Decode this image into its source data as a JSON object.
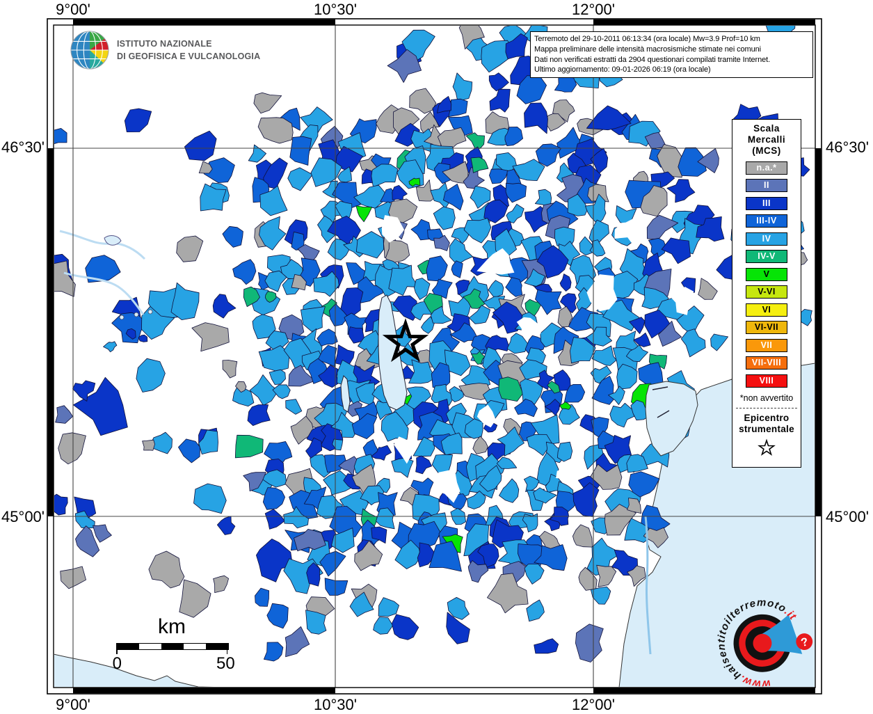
{
  "axis": {
    "top": [
      "9°00'",
      "10°30'",
      "12°00'"
    ],
    "bottom": [
      "9°00'",
      "10°30'",
      "12°00'"
    ],
    "left": [
      "46°30'",
      "45°00'"
    ],
    "right": [
      "46°30'",
      "45°00'"
    ]
  },
  "info_box": {
    "lines": [
      "Terremoto del 29-10-2011 06:13:34 (ora locale) Mw=3.9 Prof=10 km",
      "Mappa preliminare delle intensità macrosismiche stimate nei comuni",
      "Dati non verificati estratti da 2904 questionari compilati tramite Internet.",
      "Ultimo aggiornamento: 09-01-2026 06:19 (ora locale)"
    ]
  },
  "ingv": {
    "line1": "ISTITUTO NAZIONALE",
    "line2": "DI GEOFISICA E VULCANOLOGIA"
  },
  "legend": {
    "title_lines": [
      "Scala",
      "Mercalli",
      "(MCS)"
    ],
    "entries": [
      {
        "label": "n.a.*",
        "color": "#a9a9a9",
        "text_color": "#ffffff"
      },
      {
        "label": "II",
        "color": "#5c74b8",
        "text_color": "#ffffff"
      },
      {
        "label": "III",
        "color": "#0a35c8",
        "text_color": "#ffffff"
      },
      {
        "label": "III-IV",
        "color": "#0f64d8",
        "text_color": "#ffffff"
      },
      {
        "label": "IV",
        "color": "#27a3e4",
        "text_color": "#ffffff"
      },
      {
        "label": "IV-V",
        "color": "#10b877",
        "text_color": "#ffffff"
      },
      {
        "label": "V",
        "color": "#06e406",
        "text_color": "#000000"
      },
      {
        "label": "V-VI",
        "color": "#c6e70f",
        "text_color": "#000000"
      },
      {
        "label": "VI",
        "color": "#f5ef10",
        "text_color": "#000000"
      },
      {
        "label": "VI-VII",
        "color": "#efb70c",
        "text_color": "#000000"
      },
      {
        "label": "VII",
        "color": "#fa980a",
        "text_color": "#ffffff"
      },
      {
        "label": "VII-VIII",
        "color": "#f56e0d",
        "text_color": "#ffffff"
      },
      {
        "label": "VIII",
        "color": "#f51010",
        "text_color": "#ffffff"
      }
    ],
    "footnote": "*non avvertito",
    "epicenter_lines": [
      "Epicentro",
      "strumentale"
    ]
  },
  "scalebar": {
    "unit": "km",
    "start": "0",
    "end": "50"
  },
  "site_logo": {
    "prefix": "www.",
    "body": "haisentitoilterremoto",
    "suffix": ".it",
    "question_mark": "?"
  },
  "icons": {
    "epicenter_star": "☆",
    "legend_star": "☆"
  },
  "map": {
    "sea_color": "#d9edf9",
    "land_color": "#ffffff",
    "outline_color": "#10103a",
    "grid_color": "#444444",
    "frame_color": "#000000",
    "palette": {
      "na": "#a9a9a9",
      "II": "#5c74b8",
      "III": "#0a35c8",
      "III_IV": "#0f64d8",
      "IV": "#27a3e4",
      "IV_V": "#10b877",
      "V": "#06e406"
    }
  }
}
